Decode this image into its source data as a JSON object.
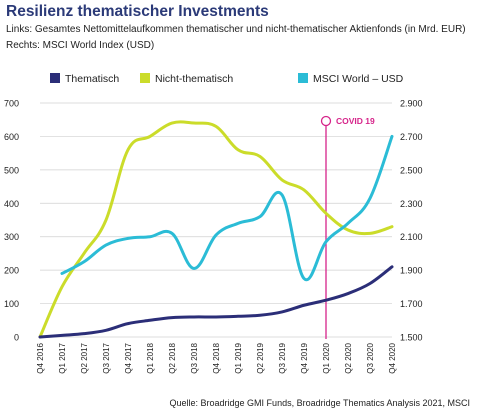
{
  "header": {
    "title": "Resilienz thematischer Investments",
    "subtitle_left": "Links: Gesamtes Nettomittelaufkommen thematischer und nicht-thematischer Aktienfonds (in Mrd. EUR)",
    "subtitle_right": "Rechts: MSCI World Index (USD)"
  },
  "footer": {
    "source": "Quelle: Broadridge GMI Funds, Broadridge Thematics Analysis 2021, MSCI"
  },
  "colors": {
    "thematisch": "#2b2e78",
    "nicht_thematisch": "#cbdc2a",
    "msci": "#2bbcd6",
    "covid": "#d6248a",
    "grid": "#d0d0d0"
  },
  "chart_data": {
    "type": "line",
    "categories": [
      "Q4 2016",
      "Q1 2017",
      "Q2 2017",
      "Q3 2017",
      "Q4 2017",
      "Q1 2018",
      "Q2 2018",
      "Q3 2018",
      "Q4 2018",
      "Q1 2019",
      "Q2 2019",
      "Q3 2019",
      "Q4 2019",
      "Q1 2020",
      "Q2 2020",
      "Q3 2020",
      "Q4 2020"
    ],
    "y_left": {
      "ticks": [
        0,
        100,
        200,
        300,
        400,
        500,
        600,
        700
      ],
      "ylim": [
        0,
        700
      ]
    },
    "y_right": {
      "ticks": [
        "1.500",
        "1.700",
        "1.900",
        "2.100",
        "2.300",
        "2.500",
        "2.700",
        "2.900"
      ],
      "ylim": [
        1500,
        2900
      ]
    },
    "grid": "horizontal",
    "legend_position": "top",
    "series": [
      {
        "name": "Thematisch",
        "axis": "left",
        "color": "#2b2e78",
        "values": [
          0,
          5,
          10,
          20,
          40,
          50,
          58,
          60,
          60,
          62,
          65,
          75,
          95,
          110,
          130,
          160,
          210
        ]
      },
      {
        "name": "Nicht-thematisch",
        "axis": "left",
        "color": "#cbdc2a",
        "values": [
          0,
          150,
          250,
          350,
          560,
          600,
          640,
          640,
          630,
          560,
          540,
          470,
          440,
          370,
          320,
          310,
          330
        ]
      },
      {
        "name": "MSCI World – USD",
        "axis": "right",
        "color": "#2bbcd6",
        "values": [
          null,
          1880,
          1950,
          2050,
          2090,
          2100,
          2120,
          1910,
          2110,
          2180,
          2220,
          2350,
          1850,
          2070,
          2180,
          2330,
          2700
        ]
      }
    ],
    "annotations": [
      {
        "label": "COVID 19",
        "category": "Q1 2020"
      }
    ]
  }
}
